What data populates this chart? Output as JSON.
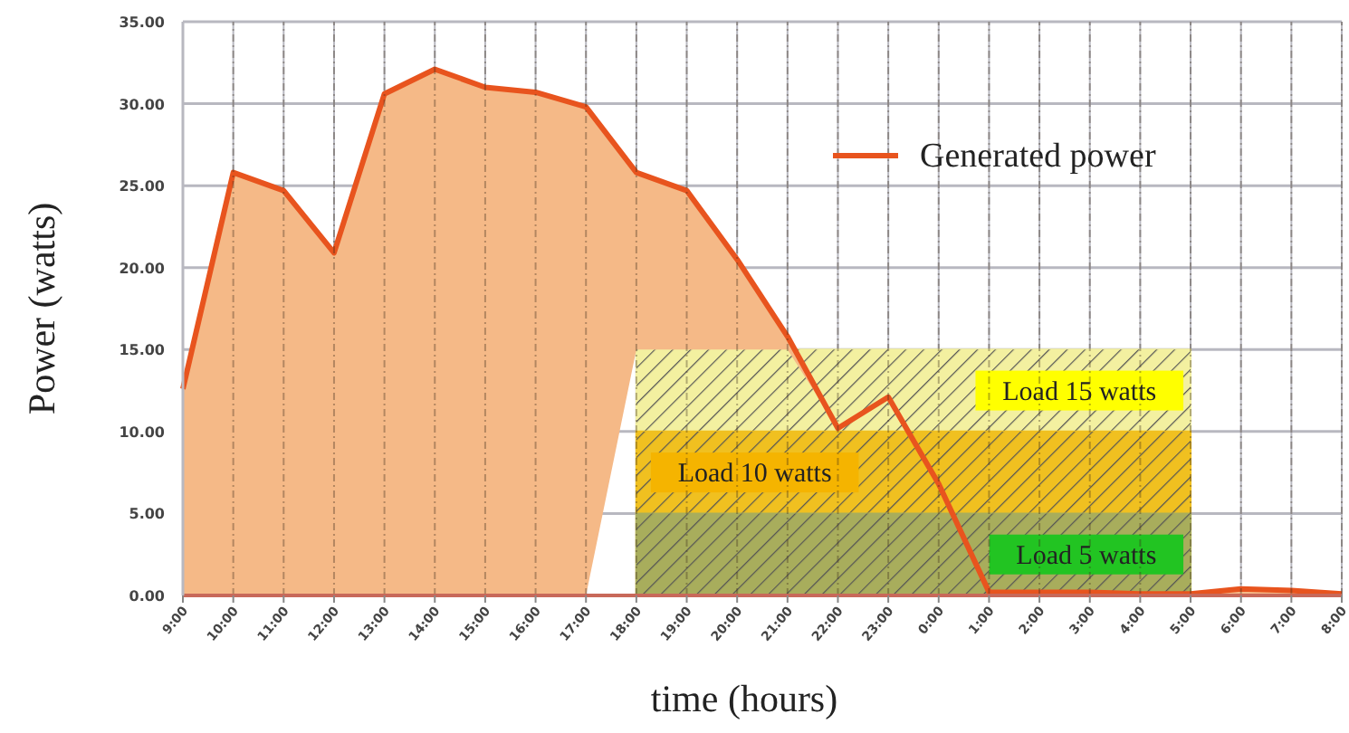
{
  "chart_data": {
    "type": "area",
    "xlabel": "time (hours)",
    "ylabel": "Power (watts)",
    "categories": [
      "9:00",
      "10:00",
      "11:00",
      "12:00",
      "13:00",
      "14:00",
      "15:00",
      "16:00",
      "17:00",
      "18:00",
      "19:00",
      "20:00",
      "21:00",
      "22:00",
      "23:00",
      "0:00",
      "1:00",
      "2:00",
      "3:00",
      "4:00",
      "5:00",
      "6:00",
      "7:00",
      "8:00"
    ],
    "series": [
      {
        "name": "Generated power",
        "color": "#e8541e",
        "values": [
          12.6,
          25.8,
          24.7,
          20.9,
          30.6,
          32.1,
          31.0,
          30.7,
          29.8,
          25.8,
          24.7,
          20.5,
          15.8,
          10.2,
          12.1,
          6.8,
          0.2,
          0.2,
          0.2,
          0.1,
          0.1,
          0.4,
          0.3,
          0.1
        ]
      },
      {
        "name": "Load 15 watts",
        "color": "#f3f0a0",
        "values": [
          null,
          null,
          null,
          null,
          null,
          null,
          null,
          null,
          null,
          15,
          15,
          15,
          15,
          15,
          15,
          15,
          15,
          15,
          15,
          15,
          15,
          null,
          null,
          null
        ]
      },
      {
        "name": "Load 10 watts",
        "color": "#f0c020",
        "values": [
          null,
          null,
          null,
          null,
          null,
          null,
          null,
          null,
          null,
          10,
          10,
          10,
          10,
          10,
          10,
          10,
          10,
          10,
          10,
          10,
          10,
          null,
          null,
          null
        ]
      },
      {
        "name": "Load 5 watts",
        "color": "#a8ad5c",
        "values": [
          null,
          null,
          null,
          null,
          null,
          null,
          null,
          null,
          null,
          5,
          5,
          5,
          5,
          5,
          5,
          5,
          5,
          5,
          5,
          5,
          5,
          null,
          null,
          null
        ]
      }
    ],
    "ylim": [
      0,
      35
    ],
    "yticks": [
      {
        "value": 0,
        "label": "0.00"
      },
      {
        "value": 5,
        "label": "5.00"
      },
      {
        "value": 10,
        "label": "10.00"
      },
      {
        "value": 15,
        "label": "15.00"
      },
      {
        "value": 20,
        "label": "20.00"
      },
      {
        "value": 25,
        "label": "25.00"
      },
      {
        "value": 30,
        "label": "30.00"
      },
      {
        "value": 35,
        "label": "35.00"
      }
    ],
    "grid": true,
    "legend": "top right"
  }
}
